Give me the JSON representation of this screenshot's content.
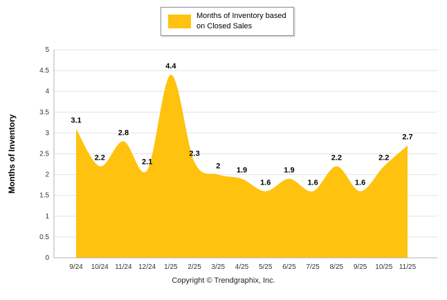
{
  "legend": {
    "label": "Months of Inventory based\non Closed Sales",
    "swatch_color": "#FFC20E"
  },
  "footer": {
    "copyright": "Copyright © Trendgraphix, Inc."
  },
  "chart_data": {
    "type": "area",
    "categories": [
      "9/24",
      "10/24",
      "11/24",
      "12/24",
      "1/25",
      "2/25",
      "3/25",
      "4/25",
      "5/25",
      "6/25",
      "7/25",
      "8/25",
      "9/25",
      "10/25",
      "11/25"
    ],
    "values": [
      3.1,
      2.2,
      2.8,
      2.1,
      4.4,
      2.3,
      2,
      1.9,
      1.6,
      1.9,
      1.6,
      2.2,
      1.6,
      2.2,
      2.7
    ],
    "title": "",
    "xlabel": "",
    "ylabel": "Months of Inventory",
    "ylim": [
      0,
      5
    ],
    "ytick_step": 0.5,
    "grid": true,
    "legend_position": "top",
    "fill_color": "#FFC20E",
    "grid_color": "#e3e3e3",
    "axis_color": "#b0b0b0"
  }
}
